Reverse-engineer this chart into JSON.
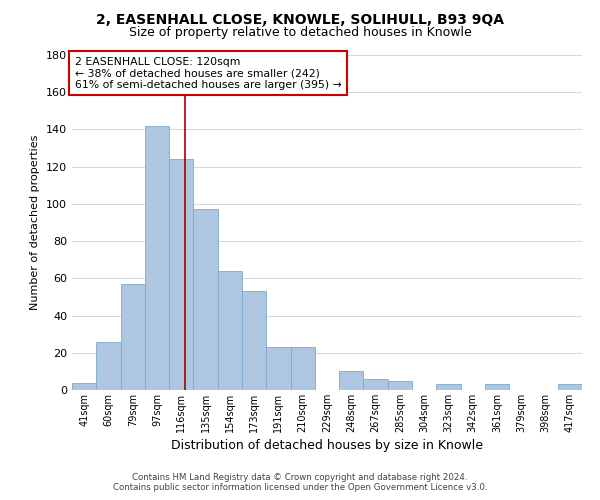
{
  "title1": "2, EASENHALL CLOSE, KNOWLE, SOLIHULL, B93 9QA",
  "title2": "Size of property relative to detached houses in Knowle",
  "xlabel": "Distribution of detached houses by size in Knowle",
  "ylabel": "Number of detached properties",
  "bar_labels": [
    "41sqm",
    "60sqm",
    "79sqm",
    "97sqm",
    "116sqm",
    "135sqm",
    "154sqm",
    "173sqm",
    "191sqm",
    "210sqm",
    "229sqm",
    "248sqm",
    "267sqm",
    "285sqm",
    "304sqm",
    "323sqm",
    "342sqm",
    "361sqm",
    "379sqm",
    "398sqm",
    "417sqm"
  ],
  "bar_values": [
    4,
    26,
    57,
    142,
    124,
    97,
    64,
    53,
    23,
    23,
    0,
    10,
    6,
    5,
    0,
    3,
    0,
    3,
    0,
    0,
    3
  ],
  "bar_color": "#aec6e0",
  "vline_color": "#aa0000",
  "vline_x": 4.15,
  "ylim": [
    0,
    180
  ],
  "yticks": [
    0,
    20,
    40,
    60,
    80,
    100,
    120,
    140,
    160,
    180
  ],
  "annotation_title": "2 EASENHALL CLOSE: 120sqm",
  "annotation_line1": "← 38% of detached houses are smaller (242)",
  "annotation_line2": "61% of semi-detached houses are larger (395) →",
  "annotation_box_color": "#ffffff",
  "annotation_box_edge": "#cc0000",
  "footer_line1": "Contains HM Land Registry data © Crown copyright and database right 2024.",
  "footer_line2": "Contains public sector information licensed under the Open Government Licence v3.0.",
  "bg_color": "#ffffff",
  "grid_color": "#ccd8e4"
}
